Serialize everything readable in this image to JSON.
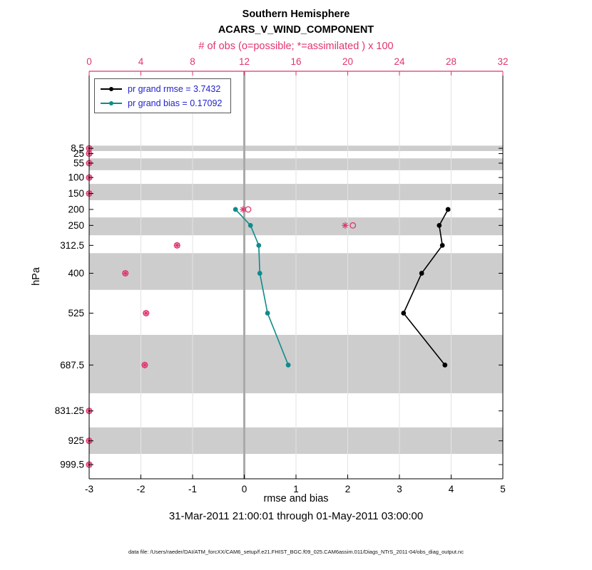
{
  "colors": {
    "obs_pink": "#e0356d",
    "bias_teal": "#0f8b8b",
    "rmse_black": "#000000",
    "legend_text_blue": "#2222cc",
    "band_gray": "#cdcdcd",
    "grid_gray": "#e3e3e3",
    "zero_line_gray": "#aaaaaa",
    "axis_black": "#000000"
  },
  "chart_data": {
    "type": "line",
    "title": "Southern Hemisphere",
    "subtitle": "ACARS_V_WIND_COMPONENT",
    "top_axis_label": "# of obs (o=possible; *=assimilated ) x 100",
    "xlabel": "rmse and bias",
    "ylabel": "hPa",
    "annotation": "31-Mar-2011 21:00:01 through 01-May-2011 03:00:00",
    "data_file_note": "data file: /Users/raeder/DAI/ATM_forcXX/CAM6_setup/f.e21.FHIST_BGC.f09_025.CAM6assim.011/Diags_NTrS_2011-04/obs_diag_output.nc",
    "legend_entries": [
      "pr grand rmse = 3.7432",
      "pr grand bias = 0.17092"
    ],
    "bottom_axis": {
      "range": [
        -3,
        5
      ],
      "ticks": [
        -3,
        -2,
        -1,
        0,
        1,
        2,
        3,
        4,
        5
      ]
    },
    "top_axis": {
      "range": [
        0,
        32
      ],
      "ticks": [
        0,
        4,
        8,
        12,
        16,
        20,
        24,
        28,
        32
      ],
      "scale_factor": 100
    },
    "y_axis": {
      "linear_in_pressure": true,
      "inverted": true,
      "tick_levels_hPa": [
        8.5,
        25,
        55,
        100,
        150,
        200,
        250,
        312.5,
        400,
        525,
        687.5,
        831.25,
        925,
        999.5
      ],
      "tick_labels": [
        "8.5",
        "25",
        "55",
        "100",
        "150",
        "200",
        "250",
        "312.5",
        "400",
        "525",
        "687.5",
        "831.25",
        "925",
        "999.5"
      ]
    },
    "series": [
      {
        "name": "pr grand rmse",
        "grand_value": 3.7432,
        "color": "#000000",
        "levels_hPa": [
          200,
          250,
          312.5,
          400,
          525,
          687.5
        ],
        "values": [
          3.94,
          3.77,
          3.83,
          3.43,
          3.08,
          3.88
        ]
      },
      {
        "name": "pr grand bias",
        "grand_value": 0.17092,
        "color": "#0f8b8b",
        "levels_hPa": [
          200,
          250,
          312.5,
          400,
          525,
          687.5
        ],
        "values": [
          -0.17,
          0.12,
          0.28,
          0.3,
          0.45,
          0.85
        ]
      }
    ],
    "obs_counts_x100": {
      "marker_color": "#e0356d",
      "levels_hPa": [
        8.5,
        25,
        55,
        100,
        150,
        200,
        250,
        312.5,
        400,
        525,
        687.5,
        831.25,
        925,
        999.5
      ],
      "possible": [
        0,
        0,
        0,
        0,
        0,
        12.3,
        20.4,
        6.8,
        2.8,
        4.4,
        4.3,
        0,
        0,
        0
      ],
      "assimilated": [
        0,
        0,
        0,
        0,
        0,
        11.9,
        19.8,
        6.8,
        2.8,
        4.4,
        4.3,
        0,
        0,
        0
      ]
    },
    "gray_bands_hPa": [
      [
        0,
        17
      ],
      [
        40,
        77
      ],
      [
        120,
        171
      ],
      [
        225,
        281
      ],
      [
        337,
        452
      ],
      [
        593,
        776
      ],
      [
        883,
        966
      ]
    ],
    "y_mapping": {
      "pressure_at_plot_top": -233,
      "pressure_at_plot_bottom": 1044
    }
  }
}
